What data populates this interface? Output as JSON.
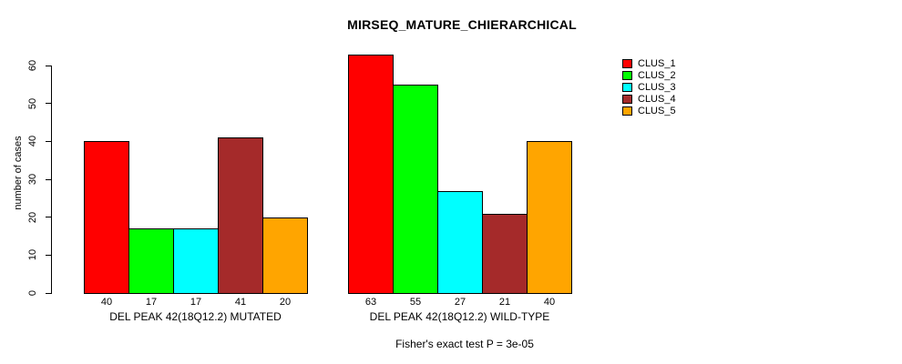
{
  "chart_data": {
    "type": "bar",
    "title": "MIRSEQ_MATURE_CHIERARCHICAL",
    "ylabel": "number of cases",
    "xlabel": "",
    "ylim": [
      0,
      60
    ],
    "yticks": [
      0,
      10,
      20,
      30,
      40,
      50,
      60
    ],
    "grid": false,
    "legend_position": "top-right",
    "bar_value_labels": true,
    "categories": [
      "DEL PEAK 42(18Q12.2) MUTATED",
      "DEL PEAK 42(18Q12.2) WILD-TYPE"
    ],
    "series": [
      {
        "name": "CLUS_1",
        "color": "#FF0000",
        "values": [
          40,
          63
        ]
      },
      {
        "name": "CLUS_2",
        "color": "#00FF00",
        "values": [
          17,
          55
        ]
      },
      {
        "name": "CLUS_3",
        "color": "#00FFFF",
        "values": [
          17,
          27
        ]
      },
      {
        "name": "CLUS_4",
        "color": "#A52A2A",
        "values": [
          41,
          21
        ]
      },
      {
        "name": "CLUS_5",
        "color": "#FFA500",
        "values": [
          20,
          40
        ]
      }
    ],
    "annotation": "Fisher's exact test P = 3e-05"
  }
}
